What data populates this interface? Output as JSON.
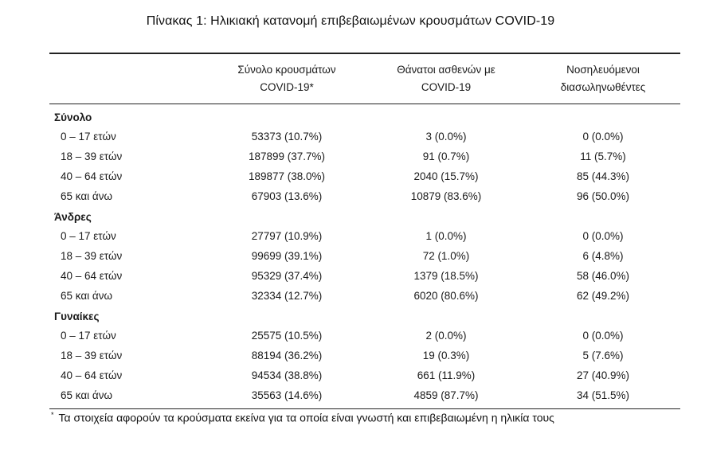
{
  "title": "Πίνακας 1: Ηλικιακή κατανομή επιβεβαιωμένων κρουσμάτων COVID-19",
  "headers": {
    "col1_line1": "Σύνολο κρουσμάτων",
    "col1_line2": "COVID-19*",
    "col2_line1": "Θάνατοι ασθενών με",
    "col2_line2": "COVID-19",
    "col3_line1": "Νοσηλευόμενοι",
    "col3_line2": "διασωληνωθέντες"
  },
  "groups": [
    {
      "title": "Σύνολο",
      "rows": [
        {
          "age": "0 – 17 ετών",
          "cases": "53373 (10.7%)",
          "deaths": "3 (0.0%)",
          "intubated": "0 (0.0%)"
        },
        {
          "age": "18 – 39 ετών",
          "cases": "187899 (37.7%)",
          "deaths": "91 (0.7%)",
          "intubated": "11 (5.7%)"
        },
        {
          "age": "40 – 64 ετών",
          "cases": "189877 (38.0%)",
          "deaths": "2040 (15.7%)",
          "intubated": "85 (44.3%)"
        },
        {
          "age": "65 και άνω",
          "cases": "67903 (13.6%)",
          "deaths": "10879 (83.6%)",
          "intubated": "96 (50.0%)"
        }
      ]
    },
    {
      "title": "Άνδρες",
      "rows": [
        {
          "age": "0 – 17 ετών",
          "cases": "27797 (10.9%)",
          "deaths": "1 (0.0%)",
          "intubated": "0 (0.0%)"
        },
        {
          "age": "18 – 39 ετών",
          "cases": "99699 (39.1%)",
          "deaths": "72 (1.0%)",
          "intubated": "6 (4.8%)"
        },
        {
          "age": "40 – 64 ετών",
          "cases": "95329 (37.4%)",
          "deaths": "1379 (18.5%)",
          "intubated": "58 (46.0%)"
        },
        {
          "age": "65 και άνω",
          "cases": "32334 (12.7%)",
          "deaths": "6020 (80.6%)",
          "intubated": "62 (49.2%)"
        }
      ]
    },
    {
      "title": "Γυναίκες",
      "rows": [
        {
          "age": "0 – 17 ετών",
          "cases": "25575 (10.5%)",
          "deaths": "2 (0.0%)",
          "intubated": "0 (0.0%)"
        },
        {
          "age": "18 – 39 ετών",
          "cases": "88194 (36.2%)",
          "deaths": "19 (0.3%)",
          "intubated": "5 (7.6%)"
        },
        {
          "age": "40 – 64 ετών",
          "cases": "94534 (38.8%)",
          "deaths": "661 (11.9%)",
          "intubated": "27 (40.9%)"
        },
        {
          "age": "65 και άνω",
          "cases": "35563 (14.6%)",
          "deaths": "4859 (87.7%)",
          "intubated": "34 (51.5%)"
        }
      ]
    }
  ],
  "footnote": {
    "mark": "*",
    "text": "Τα στοιχεία αφορούν τα κρούσματα εκείνα για τα οποία είναι γνωστή και επιβεβαιωμένη η ηλικία τους"
  }
}
